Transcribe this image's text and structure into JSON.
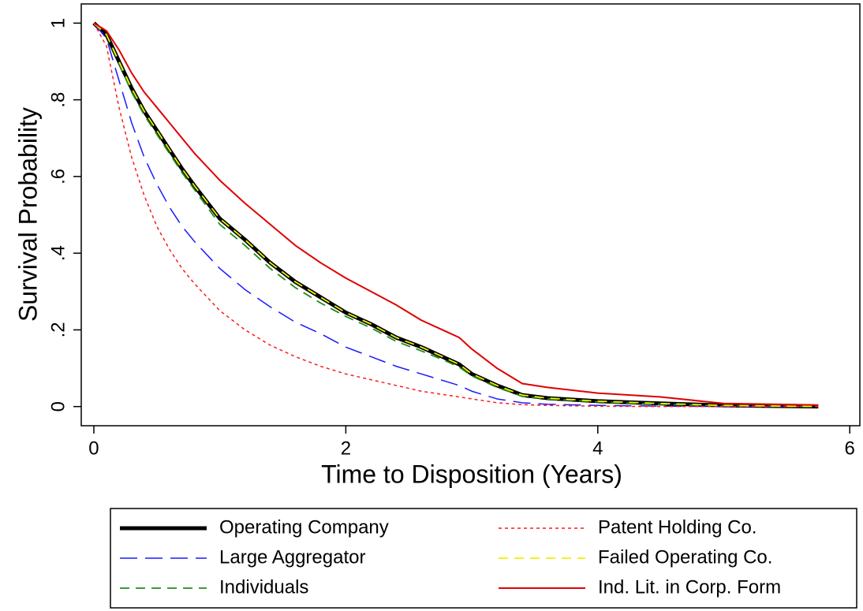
{
  "chart_data": {
    "type": "line",
    "xlabel": "Time to Disposition (Years)",
    "ylabel": "Survival Probability",
    "x": [
      0,
      0.1,
      0.2,
      0.3,
      0.4,
      0.5,
      0.6,
      0.7,
      0.8,
      1.0,
      1.2,
      1.4,
      1.6,
      1.8,
      2.0,
      2.2,
      2.4,
      2.6,
      2.8,
      2.9,
      3.0,
      3.2,
      3.4,
      3.6,
      4.0,
      4.5,
      5.0,
      5.75
    ],
    "xlim": [
      -0.1,
      6.08
    ],
    "xticks": [
      0,
      2,
      4,
      6
    ],
    "ylim": [
      -0.05,
      1.05
    ],
    "yticks": [
      0,
      {
        "value": 0.2,
        "label": ".2"
      },
      {
        "value": 0.4,
        "label": ".4"
      },
      {
        "value": 0.6,
        "label": ".6"
      },
      {
        "value": 0.8,
        "label": ".8"
      },
      1
    ],
    "legend": "bottom",
    "series": [
      {
        "name": "Operating Company",
        "color": "#000000",
        "dash": "solid",
        "width": 5,
        "values": [
          1,
          0.97,
          0.9,
          0.83,
          0.77,
          0.72,
          0.67,
          0.62,
          0.575,
          0.49,
          0.435,
          0.375,
          0.325,
          0.285,
          0.245,
          0.215,
          0.18,
          0.155,
          0.125,
          0.11,
          0.085,
          0.055,
          0.03,
          0.022,
          0.014,
          0.008,
          0.003,
          0
        ]
      },
      {
        "name": "Large Aggregator",
        "color": "#1a1aff",
        "dash": "longdash",
        "width": 1.5,
        "values": [
          1,
          0.96,
          0.85,
          0.74,
          0.65,
          0.58,
          0.52,
          0.47,
          0.43,
          0.36,
          0.305,
          0.26,
          0.22,
          0.19,
          0.155,
          0.13,
          0.105,
          0.085,
          0.065,
          0.055,
          0.04,
          0.02,
          0.01,
          0.006,
          0.003,
          0.001,
          0,
          0
        ]
      },
      {
        "name": "Individuals",
        "color": "#1e8c1e",
        "dash": "dash",
        "width": 1.8,
        "values": [
          1,
          0.97,
          0.895,
          0.82,
          0.76,
          0.71,
          0.66,
          0.61,
          0.565,
          0.475,
          0.42,
          0.36,
          0.31,
          0.27,
          0.235,
          0.205,
          0.17,
          0.145,
          0.118,
          0.103,
          0.08,
          0.05,
          0.027,
          0.02,
          0.012,
          0.006,
          0.002,
          0
        ]
      },
      {
        "name": "Patent Holding Co.",
        "color": "#ff1a1a",
        "dash": "dot",
        "width": 1.5,
        "values": [
          1,
          0.94,
          0.78,
          0.65,
          0.55,
          0.47,
          0.41,
          0.36,
          0.32,
          0.25,
          0.2,
          0.16,
          0.13,
          0.105,
          0.085,
          0.07,
          0.055,
          0.04,
          0.03,
          0.025,
          0.02,
          0.01,
          0.005,
          0.003,
          0.001,
          0,
          0,
          0
        ]
      },
      {
        "name": "Failed Operating Co.",
        "color": "#f0f000",
        "dash": "dash",
        "width": 1.8,
        "values": [
          1,
          0.97,
          0.9,
          0.83,
          0.77,
          0.72,
          0.67,
          0.62,
          0.575,
          0.49,
          0.435,
          0.375,
          0.325,
          0.285,
          0.245,
          0.215,
          0.18,
          0.155,
          0.125,
          0.11,
          0.085,
          0.055,
          0.03,
          0.022,
          0.014,
          0.008,
          0.003,
          0
        ]
      },
      {
        "name": "Ind. Lit. in Corp. Form",
        "color": "#e00000",
        "dash": "solid",
        "width": 2,
        "values": [
          1,
          0.98,
          0.93,
          0.87,
          0.82,
          0.78,
          0.74,
          0.7,
          0.66,
          0.59,
          0.53,
          0.475,
          0.42,
          0.375,
          0.335,
          0.3,
          0.265,
          0.225,
          0.195,
          0.18,
          0.15,
          0.1,
          0.06,
          0.05,
          0.035,
          0.025,
          0.008,
          0.004
        ]
      }
    ]
  }
}
